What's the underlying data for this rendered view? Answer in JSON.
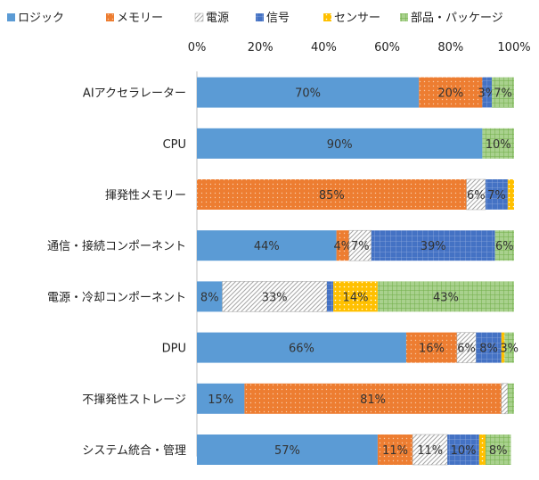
{
  "chart_data": {
    "type": "bar",
    "orientation": "horizontal",
    "stacked": "percent",
    "legend_position": "top",
    "grid": false,
    "xlim": [
      0,
      100
    ],
    "x_ticks": [
      0,
      20,
      40,
      60,
      80,
      100
    ],
    "x_tick_labels": [
      "0%",
      "20%",
      "40%",
      "60%",
      "80%",
      "100%"
    ],
    "categories": [
      "AIアクセラレーター",
      "CPU",
      "揮発性メモリー",
      "通信・接続コンポーネント",
      "電源・冷却コンポーネント",
      "DPU",
      "不揮発性ストレージ",
      "システム統合・管理"
    ],
    "series": [
      {
        "name": "ロジック",
        "color": "#5b9bd5",
        "pattern": "solid",
        "values": [
          70,
          90,
          0,
          44,
          8,
          66,
          15,
          57
        ],
        "labels": [
          "70%",
          "90%",
          "",
          "44%",
          "8%",
          "66%",
          "15%",
          "57%"
        ]
      },
      {
        "name": "メモリー",
        "color": "#ed7d31",
        "pattern": "dots",
        "values": [
          20,
          0,
          85,
          4,
          0,
          16,
          81,
          11
        ],
        "labels": [
          "20%",
          "",
          "85%",
          "4%",
          "",
          "16%",
          "81%",
          "11%"
        ]
      },
      {
        "name": "電源",
        "color": "#a5a5a5",
        "pattern": "diagonal",
        "values": [
          0,
          0,
          6,
          7,
          33,
          6,
          2,
          11
        ],
        "labels": [
          "",
          "",
          "6%",
          "7%",
          "33%",
          "6%",
          "",
          "11%"
        ]
      },
      {
        "name": "信号",
        "color": "#4472c4",
        "pattern": "grid",
        "values": [
          3,
          0,
          7,
          39,
          2,
          8,
          0,
          10
        ],
        "labels": [
          "3%",
          "",
          "7%",
          "39%",
          "",
          "8%",
          "",
          "10%"
        ]
      },
      {
        "name": "センサー",
        "color": "#ffc000",
        "pattern": "dots",
        "values": [
          0,
          0,
          2,
          0,
          14,
          1,
          0,
          2
        ],
        "labels": [
          "",
          "",
          "",
          "",
          "14%",
          "",
          "",
          ""
        ]
      },
      {
        "name": "部品・パッケージ",
        "color": "#70ad47",
        "pattern": "check",
        "values": [
          7,
          10,
          0,
          6,
          43,
          3,
          2,
          8
        ],
        "labels": [
          "7%",
          "10%",
          "",
          "6%",
          "43%",
          "3%",
          "",
          "8%"
        ]
      }
    ]
  }
}
